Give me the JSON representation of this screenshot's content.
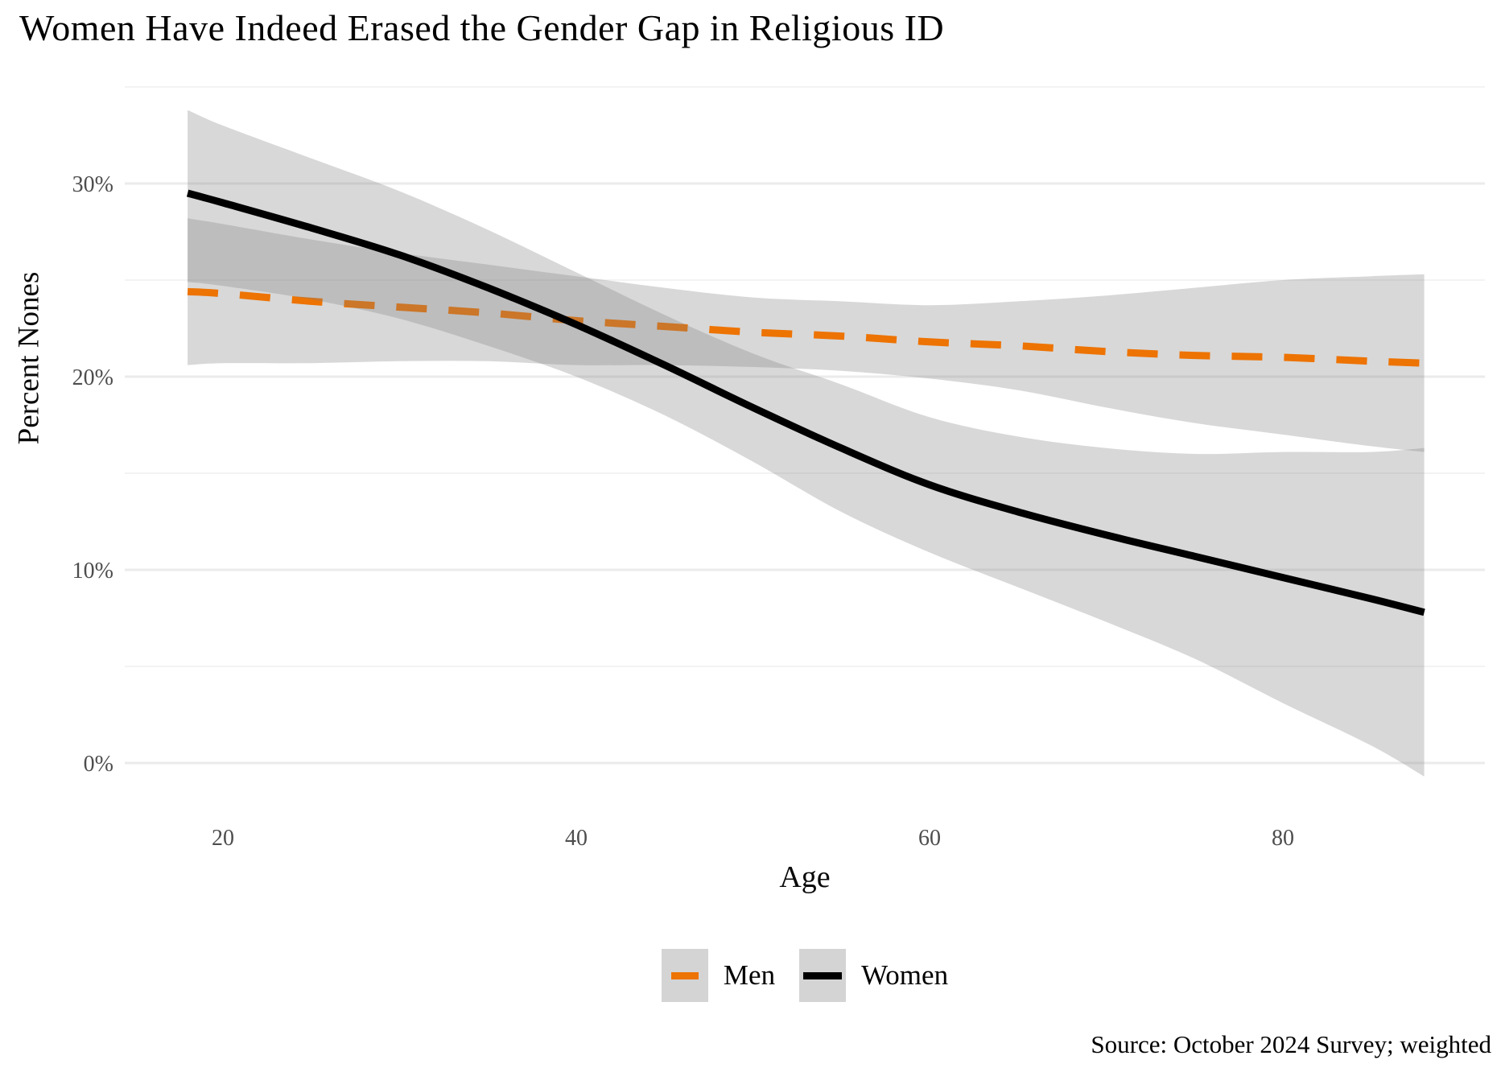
{
  "title": "Women Have Indeed Erased the Gender Gap in Religious ID",
  "source_note": "Source: October 2024 Survey; weighted",
  "axes": {
    "x_label": "Age",
    "y_label": "Percent Nones",
    "x_ticks": [
      {
        "label": "20",
        "value": 20
      },
      {
        "label": "40",
        "value": 40
      },
      {
        "label": "60",
        "value": 60
      },
      {
        "label": "80",
        "value": 80
      }
    ],
    "y_ticks": [
      {
        "label": "0%",
        "value": 0
      },
      {
        "label": "10%",
        "value": 10
      },
      {
        "label": "20%",
        "value": 20
      },
      {
        "label": "30%",
        "value": 30
      }
    ],
    "y_minor": [
      5,
      15,
      25,
      35
    ]
  },
  "legend": {
    "items": [
      {
        "label": "Men",
        "color": "#ed7303",
        "style": "dashed"
      },
      {
        "label": "Women",
        "color": "#000000",
        "style": "solid"
      }
    ],
    "position": "bottom-center",
    "key_background": "#d4d4d4"
  },
  "colors": {
    "men_line": "#ed7303",
    "women_line": "#000000",
    "ci_band_fill": "rgba(125,125,125,0.30)",
    "grid_major": "#ebebeb",
    "grid_minor": "#f3f3f3",
    "tick_text": "#4d4d4d"
  },
  "chart_data": {
    "type": "line",
    "title": "Women Have Indeed Erased the Gender Gap in Religious ID",
    "xlabel": "Age",
    "ylabel": "Percent Nones",
    "xlim": [
      14.4,
      91.4
    ],
    "ylim": [
      -2.2,
      35.5
    ],
    "grid": "horizontal-only",
    "legend_position": "bottom-center",
    "unit": "percent",
    "ages": [
      18,
      20,
      25,
      30,
      35,
      40,
      45,
      50,
      55,
      60,
      65,
      70,
      75,
      80,
      85,
      88
    ],
    "series": [
      {
        "name": "Men",
        "color": "#ed7303",
        "line_style": "dashed",
        "fit": [
          24.4,
          24.3,
          23.9,
          23.6,
          23.3,
          22.9,
          22.6,
          22.3,
          22.1,
          21.8,
          21.6,
          21.3,
          21.1,
          21.0,
          20.8,
          20.7
        ],
        "ci_lower": [
          20.6,
          20.7,
          20.7,
          20.8,
          20.8,
          20.6,
          20.6,
          20.5,
          20.3,
          19.9,
          19.3,
          18.4,
          17.6,
          17.0,
          16.4,
          16.1
        ],
        "ci_upper": [
          28.2,
          27.9,
          27.1,
          26.4,
          25.8,
          25.2,
          24.6,
          24.1,
          23.9,
          23.7,
          23.9,
          24.2,
          24.6,
          25.0,
          25.2,
          25.3
        ]
      },
      {
        "name": "Women",
        "color": "#000000",
        "line_style": "solid",
        "fit": [
          29.5,
          29.0,
          27.7,
          26.3,
          24.6,
          22.7,
          20.6,
          18.4,
          16.3,
          14.4,
          13.0,
          11.8,
          10.7,
          9.6,
          8.5,
          7.8
        ],
        "ci_lower": [
          24.9,
          24.7,
          24.0,
          23.0,
          21.6,
          20.0,
          18.0,
          15.6,
          13.0,
          10.9,
          9.1,
          7.3,
          5.4,
          3.1,
          0.9,
          -0.7
        ],
        "ci_upper": [
          33.8,
          33.0,
          31.3,
          29.6,
          27.6,
          25.4,
          23.2,
          21.2,
          19.6,
          17.9,
          16.9,
          16.3,
          16.0,
          16.1,
          16.1,
          16.3
        ]
      }
    ]
  }
}
